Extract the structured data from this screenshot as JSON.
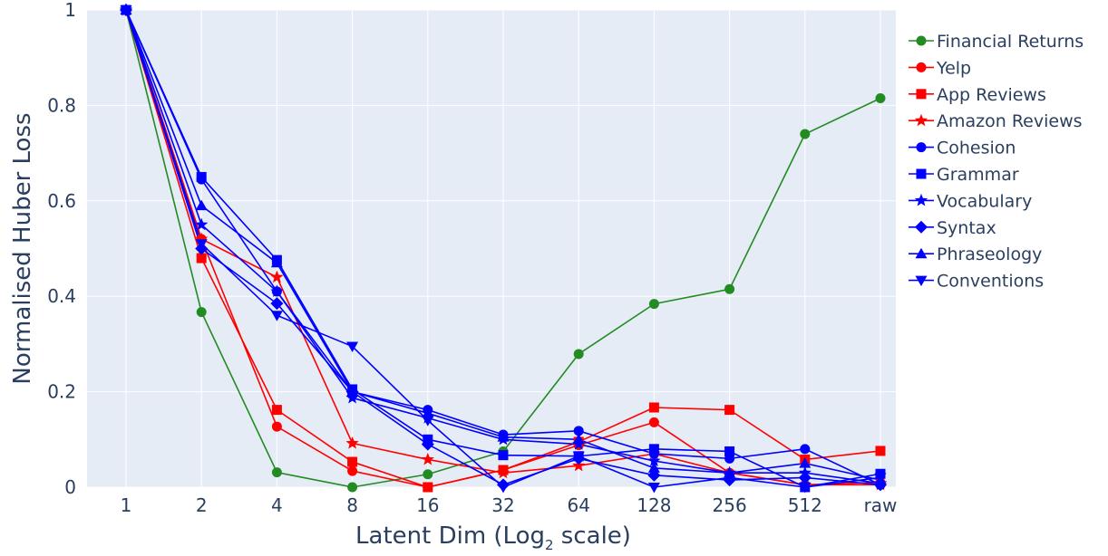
{
  "chart_data": {
    "type": "line",
    "title": "",
    "xlabel": "Latent Dim (Log",
    "xlabel_subscript": "2",
    "xlabel_suffix": " scale)",
    "ylabel": "Normalised Huber Loss",
    "ylim": [
      0,
      1
    ],
    "x_axis_type": "categorical",
    "categories": [
      "1",
      "2",
      "4",
      "8",
      "16",
      "32",
      "64",
      "128",
      "256",
      "512",
      "raw"
    ],
    "y_ticks": [
      0,
      0.2,
      0.4,
      0.6,
      0.8,
      1
    ],
    "y_tick_labels": [
      "0",
      "0.2",
      "0.4",
      "0.6",
      "0.8",
      "1"
    ],
    "grid": true,
    "legend_position": "right",
    "series": [
      {
        "name": "Financial Returns",
        "color": "#228b22",
        "marker": "circle",
        "values": [
          1,
          0.367,
          0.031,
          0.0,
          0.027,
          0.075,
          0.279,
          0.384,
          0.415,
          0.74,
          0.815
        ]
      },
      {
        "name": "Yelp",
        "color": "#ff0000",
        "marker": "circle",
        "values": [
          1,
          0.52,
          0.127,
          0.034,
          0.0,
          0.036,
          0.088,
          0.136,
          0.03,
          0.005,
          0.01
        ]
      },
      {
        "name": "App Reviews",
        "color": "#ff0000",
        "marker": "square",
        "values": [
          1,
          0.48,
          0.162,
          0.053,
          0.0,
          0.036,
          0.095,
          0.167,
          0.162,
          0.058,
          0.076
        ]
      },
      {
        "name": "Amazon Reviews",
        "color": "#ff0000",
        "marker": "star",
        "values": [
          1,
          0.52,
          0.44,
          0.092,
          0.058,
          0.03,
          0.045,
          0.07,
          0.03,
          0.005,
          0.005
        ]
      },
      {
        "name": "Cohesion",
        "color": "#0000ff",
        "marker": "circle",
        "values": [
          1,
          0.645,
          0.41,
          0.2,
          0.162,
          0.11,
          0.118,
          0.07,
          0.06,
          0.08,
          0.005
        ]
      },
      {
        "name": "Grammar",
        "color": "#0000ff",
        "marker": "square",
        "values": [
          1,
          0.65,
          0.476,
          0.205,
          0.1,
          0.067,
          0.065,
          0.08,
          0.075,
          0.0,
          0.028
        ]
      },
      {
        "name": "Vocabulary",
        "color": "#0000ff",
        "marker": "star",
        "values": [
          1,
          0.55,
          0.41,
          0.187,
          0.145,
          0.1,
          0.09,
          0.055,
          0.03,
          0.03,
          0.008
        ]
      },
      {
        "name": "Syntax",
        "color": "#0000ff",
        "marker": "diamond",
        "values": [
          1,
          0.5,
          0.385,
          0.2,
          0.09,
          0.005,
          0.06,
          0.025,
          0.015,
          0.02,
          0.005
        ]
      },
      {
        "name": "Phraseology",
        "color": "#0000ff",
        "marker": "triangle-up",
        "values": [
          1,
          0.59,
          0.47,
          0.2,
          0.155,
          0.105,
          0.1,
          0.04,
          0.03,
          0.05,
          0.015
        ]
      },
      {
        "name": "Conventions",
        "color": "#0000ff",
        "marker": "triangle-down",
        "values": [
          1,
          0.51,
          0.36,
          0.295,
          0.14,
          0.0,
          0.065,
          0.0,
          0.02,
          0.0,
          0.02
        ]
      }
    ]
  }
}
